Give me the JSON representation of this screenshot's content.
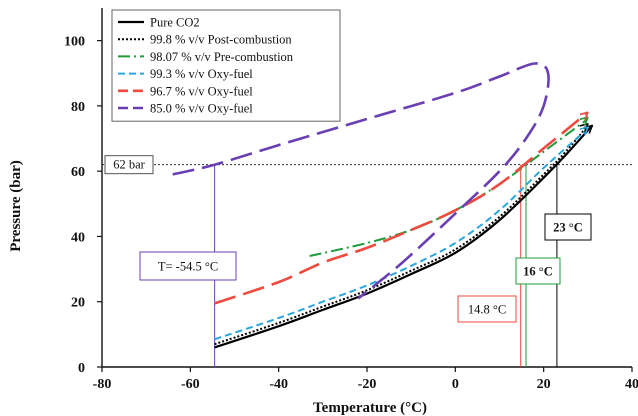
{
  "chart_data": {
    "type": "line",
    "xlabel": "Temperature (°C)",
    "ylabel": "Pressure (bar)",
    "xlim": [
      -80,
      40
    ],
    "ylim": [
      0,
      110
    ],
    "xticks": [
      -80,
      -60,
      -40,
      -20,
      0,
      20,
      40
    ],
    "yticks": [
      0,
      20,
      40,
      60,
      80,
      100
    ],
    "grid": false,
    "legend_position": "top-left",
    "series": [
      {
        "name": "Pure CO2",
        "color": "#000000",
        "style": "solid",
        "points": [
          [
            -54.5,
            6.0
          ],
          [
            -40,
            12.5
          ],
          [
            -30,
            17.5
          ],
          [
            -20,
            22.5
          ],
          [
            -10,
            28.5
          ],
          [
            0,
            35.0
          ],
          [
            10,
            45.0
          ],
          [
            20,
            58.0
          ],
          [
            25,
            65.0
          ],
          [
            31,
            74.0
          ]
        ]
      },
      {
        "name": "99.8 % v/v Post-combustion",
        "color": "#000000",
        "style": "dotted",
        "points": [
          [
            -54.5,
            7.0
          ],
          [
            -40,
            13.5
          ],
          [
            -30,
            18.5
          ],
          [
            -20,
            23.5
          ],
          [
            -10,
            29.5
          ],
          [
            0,
            36.0
          ],
          [
            10,
            46.0
          ],
          [
            20,
            59.0
          ],
          [
            25,
            66.0
          ],
          [
            30,
            74.0
          ]
        ]
      },
      {
        "name": "98.07 % v/v Pre-combustion",
        "color": "#1e9b3a",
        "style": "dashdot",
        "points": [
          [
            -33,
            34.0
          ],
          [
            -20,
            38.0
          ],
          [
            -10,
            42.0
          ],
          [
            0,
            48.0
          ],
          [
            10,
            56.0
          ],
          [
            20,
            66.0
          ],
          [
            30,
            76.0
          ]
        ]
      },
      {
        "name": "99.3 % v/v Oxy-fuel",
        "color": "#2aa6e0",
        "style": "dashed",
        "points": [
          [
            -54.5,
            8.5
          ],
          [
            -40,
            15.0
          ],
          [
            -30,
            20.0
          ],
          [
            -20,
            25.0
          ],
          [
            -10,
            31.0
          ],
          [
            0,
            38.0
          ],
          [
            10,
            48.0
          ],
          [
            20,
            61.0
          ],
          [
            30,
            73.0
          ]
        ]
      },
      {
        "name": "96.7 % v/v Oxy-fuel",
        "color": "#f0493e",
        "style": "longdash",
        "points": [
          [
            -54.5,
            19.5
          ],
          [
            -40,
            26.0
          ],
          [
            -30,
            32.0
          ],
          [
            -20,
            36.5
          ],
          [
            -10,
            42.0
          ],
          [
            0,
            48.0
          ],
          [
            10,
            56.0
          ],
          [
            20,
            67.0
          ],
          [
            30,
            78.0
          ]
        ]
      },
      {
        "name": "85.0 % v/v Oxy-fuel",
        "color": "#6a3fb3",
        "style": "longdash",
        "points": [
          [
            -64,
            59.0
          ],
          [
            -54.5,
            62.0
          ],
          [
            -40,
            68.0
          ],
          [
            -20,
            76.0
          ],
          [
            0,
            84.0
          ],
          [
            10,
            89.0
          ],
          [
            18,
            93.0
          ],
          [
            21,
            90.0
          ],
          [
            20,
            80.0
          ],
          [
            16,
            70.0
          ],
          [
            10,
            60.0
          ],
          [
            0,
            47.0
          ],
          [
            -12,
            32.0
          ],
          [
            -22,
            21.0
          ]
        ]
      }
    ],
    "annotations": {
      "h_line_label": "62 bar",
      "h_line_value": 62,
      "t_labels": [
        {
          "text": "T= -54.5 °C",
          "x": -54.5,
          "color": "#6a3fb3",
          "bold": false
        },
        {
          "text": "14.8 °C",
          "x": 14.8,
          "color": "#f0493e",
          "bold": false
        },
        {
          "text": "16 °C",
          "x": 16.0,
          "color": "#1e9b3a",
          "bold": true
        },
        {
          "text": "23 °C",
          "x": 23.0,
          "color": "#000000",
          "bold": true
        }
      ]
    }
  }
}
